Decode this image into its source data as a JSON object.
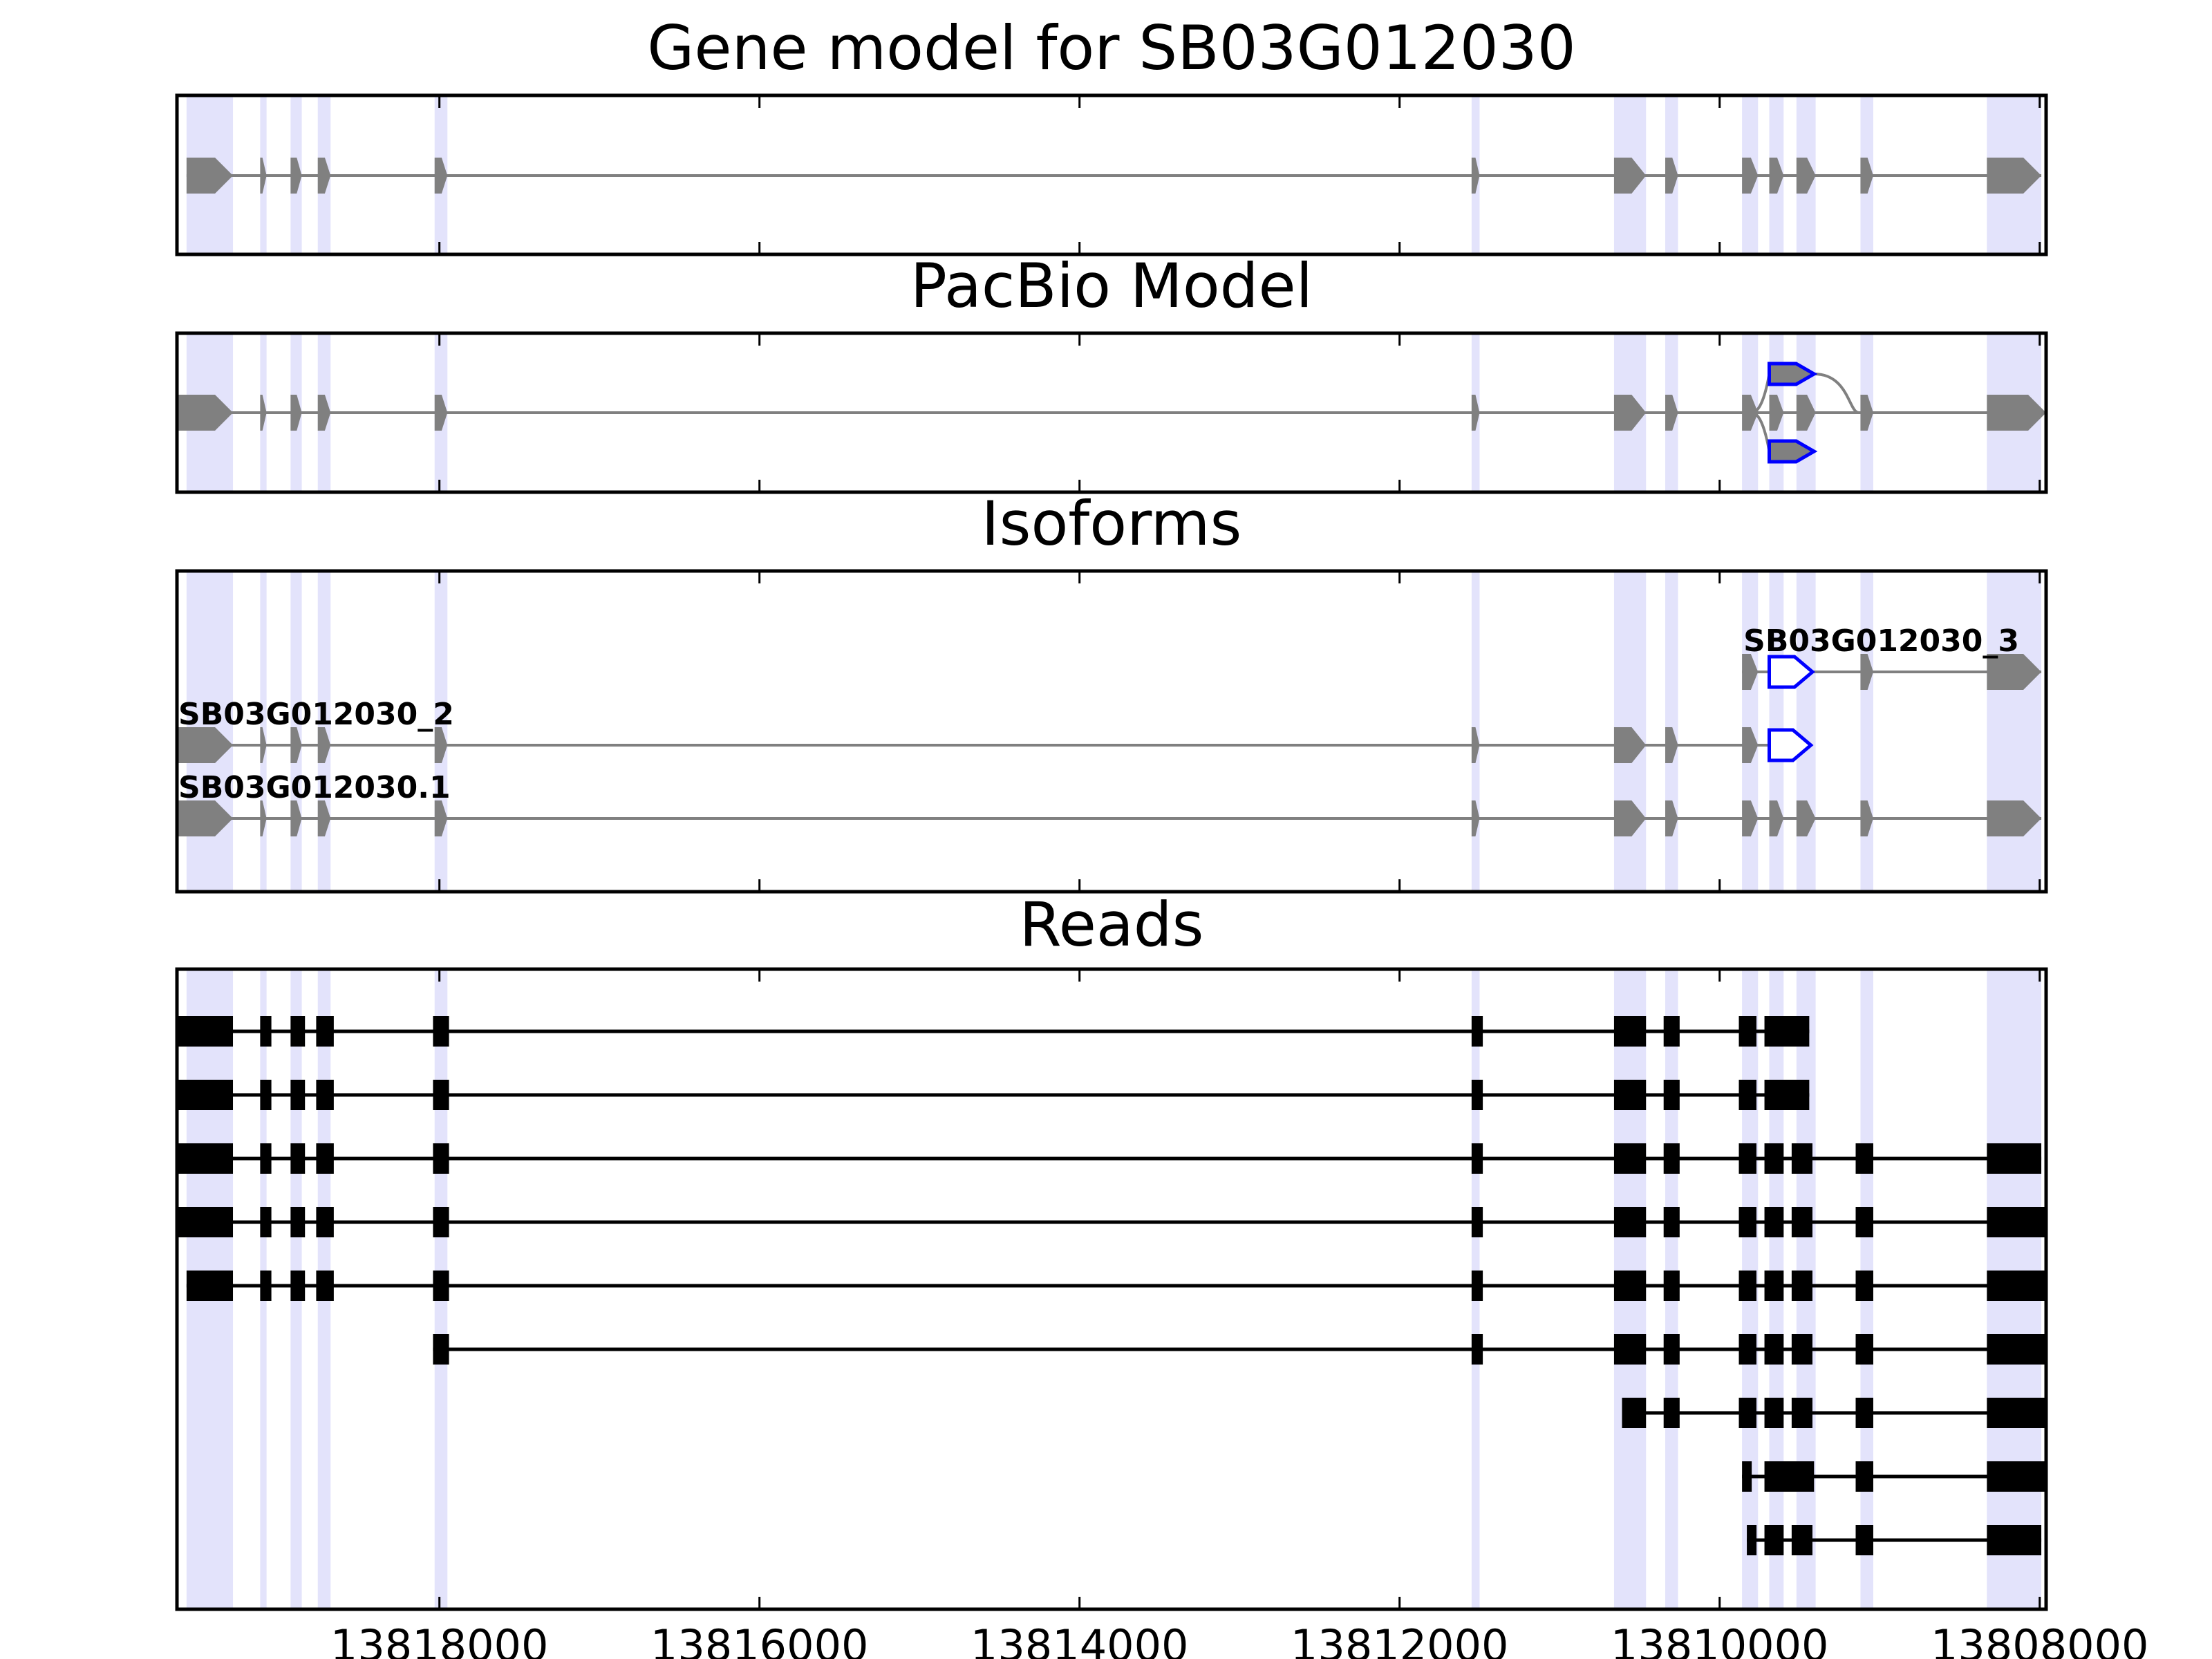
{
  "chart_data": {
    "type": "gene_model",
    "x_reversed": true,
    "xlim": [
      13819640,
      13807960
    ],
    "x_ticks": [
      13818000,
      13816000,
      13814000,
      13812000,
      13810000,
      13808000
    ],
    "x_tick_labels": [
      "13818000",
      "13816000",
      "13814000",
      "13812000",
      "13810000",
      "13808000"
    ],
    "shaded_exons": [
      [
        13819580,
        13819290
      ],
      [
        13819120,
        13819080
      ],
      [
        13818930,
        13818860
      ],
      [
        13818760,
        13818680
      ],
      [
        13818030,
        13817950
      ],
      [
        13811550,
        13811500
      ],
      [
        13810660,
        13810460
      ],
      [
        13810340,
        13810260
      ],
      [
        13809860,
        13809760
      ],
      [
        13809690,
        13809600
      ],
      [
        13809520,
        13809400
      ],
      [
        13809120,
        13809040
      ],
      [
        13808330,
        13807990
      ]
    ],
    "panels": [
      {
        "title": "Gene model for SB03G012030",
        "tracks": [
          {
            "label": "",
            "exons": [
              {
                "start": 13819580,
                "end": 13819290,
                "color": "gray"
              },
              {
                "start": 13819120,
                "end": 13819080,
                "color": "gray"
              },
              {
                "start": 13818930,
                "end": 13818860,
                "color": "gray"
              },
              {
                "start": 13818760,
                "end": 13818680,
                "color": "gray"
              },
              {
                "start": 13818030,
                "end": 13817950,
                "color": "gray"
              },
              {
                "start": 13811550,
                "end": 13811500,
                "color": "gray"
              },
              {
                "start": 13810660,
                "end": 13810460,
                "color": "gray"
              },
              {
                "start": 13810340,
                "end": 13810260,
                "color": "gray"
              },
              {
                "start": 13809860,
                "end": 13809760,
                "color": "gray"
              },
              {
                "start": 13809690,
                "end": 13809600,
                "color": "gray"
              },
              {
                "start": 13809520,
                "end": 13809400,
                "color": "gray"
              },
              {
                "start": 13809120,
                "end": 13809040,
                "color": "gray"
              },
              {
                "start": 13808330,
                "end": 13807990,
                "color": "gray"
              }
            ]
          }
        ]
      },
      {
        "title": "PacBio Model",
        "tracks": [
          {
            "label": "",
            "exons": [
              {
                "start": 13819640,
                "end": 13819290,
                "color": "gray"
              },
              {
                "start": 13819120,
                "end": 13819080,
                "color": "gray"
              },
              {
                "start": 13818930,
                "end": 13818860,
                "color": "gray"
              },
              {
                "start": 13818760,
                "end": 13818680,
                "color": "gray"
              },
              {
                "start": 13818030,
                "end": 13817950,
                "color": "gray"
              },
              {
                "start": 13811550,
                "end": 13811500,
                "color": "gray"
              },
              {
                "start": 13810660,
                "end": 13810460,
                "color": "gray"
              },
              {
                "start": 13810340,
                "end": 13810260,
                "color": "gray"
              },
              {
                "start": 13809860,
                "end": 13809760,
                "color": "gray"
              },
              {
                "start": 13809690,
                "end": 13809600,
                "color": "gray"
              },
              {
                "start": 13809520,
                "end": 13809400,
                "color": "gray"
              },
              {
                "start": 13809120,
                "end": 13809040,
                "color": "gray"
              },
              {
                "start": 13808330,
                "end": 13807960,
                "color": "gray"
              }
            ]
          }
        ],
        "alt_exons": [
          {
            "start": 13809690,
            "end": 13809410,
            "color": "blue",
            "branch": "up"
          },
          {
            "start": 13809690,
            "end": 13809410,
            "color": "blue",
            "branch": "down"
          }
        ]
      },
      {
        "title": "Isoforms",
        "tracks": [
          {
            "label": "SB03G012030_3",
            "exons": [
              {
                "start": 13809860,
                "end": 13809760,
                "color": "gray"
              },
              {
                "start": 13809690,
                "end": 13809420,
                "color": "blue"
              },
              {
                "start": 13809120,
                "end": 13809040,
                "color": "gray"
              },
              {
                "start": 13808330,
                "end": 13807990,
                "color": "gray"
              }
            ]
          },
          {
            "label": "SB03G012030_2",
            "exons": [
              {
                "start": 13819640,
                "end": 13819290,
                "color": "gray"
              },
              {
                "start": 13819120,
                "end": 13819080,
                "color": "gray"
              },
              {
                "start": 13818930,
                "end": 13818860,
                "color": "gray"
              },
              {
                "start": 13818760,
                "end": 13818680,
                "color": "gray"
              },
              {
                "start": 13818030,
                "end": 13817950,
                "color": "gray"
              },
              {
                "start": 13811550,
                "end": 13811500,
                "color": "gray"
              },
              {
                "start": 13810660,
                "end": 13810460,
                "color": "gray"
              },
              {
                "start": 13810340,
                "end": 13810260,
                "color": "gray"
              },
              {
                "start": 13809860,
                "end": 13809760,
                "color": "gray"
              },
              {
                "start": 13809690,
                "end": 13809430,
                "color": "blue"
              }
            ]
          },
          {
            "label": "SB03G012030.1",
            "exons": [
              {
                "start": 13819640,
                "end": 13819290,
                "color": "gray"
              },
              {
                "start": 13819120,
                "end": 13819080,
                "color": "gray"
              },
              {
                "start": 13818930,
                "end": 13818860,
                "color": "gray"
              },
              {
                "start": 13818760,
                "end": 13818680,
                "color": "gray"
              },
              {
                "start": 13818030,
                "end": 13817950,
                "color": "gray"
              },
              {
                "start": 13811550,
                "end": 13811500,
                "color": "gray"
              },
              {
                "start": 13810660,
                "end": 13810460,
                "color": "gray"
              },
              {
                "start": 13810340,
                "end": 13810260,
                "color": "gray"
              },
              {
                "start": 13809860,
                "end": 13809760,
                "color": "gray"
              },
              {
                "start": 13809690,
                "end": 13809600,
                "color": "gray"
              },
              {
                "start": 13809520,
                "end": 13809400,
                "color": "gray"
              },
              {
                "start": 13809120,
                "end": 13809040,
                "color": "gray"
              },
              {
                "start": 13808330,
                "end": 13807990,
                "color": "gray"
              }
            ]
          }
        ]
      },
      {
        "title": "Reads",
        "reads": [
          [
            [
              13819640,
              13819290
            ],
            [
              13819120,
              13819050
            ],
            [
              13818930,
              13818840
            ],
            [
              13818770,
              13818660
            ],
            [
              13818040,
              13817940
            ],
            [
              13811550,
              13811480
            ],
            [
              13810660,
              13810460
            ],
            [
              13810350,
              13810250
            ],
            [
              13809880,
              13809770
            ],
            [
              13809720,
              13809440
            ]
          ],
          [
            [
              13819640,
              13819290
            ],
            [
              13819120,
              13819050
            ],
            [
              13818930,
              13818840
            ],
            [
              13818770,
              13818660
            ],
            [
              13818040,
              13817940
            ],
            [
              13811550,
              13811480
            ],
            [
              13810660,
              13810460
            ],
            [
              13810350,
              13810250
            ],
            [
              13809880,
              13809770
            ],
            [
              13809720,
              13809440
            ]
          ],
          [
            [
              13819640,
              13819290
            ],
            [
              13819120,
              13819050
            ],
            [
              13818930,
              13818840
            ],
            [
              13818770,
              13818660
            ],
            [
              13818040,
              13817940
            ],
            [
              13811550,
              13811480
            ],
            [
              13810660,
              13810460
            ],
            [
              13810350,
              13810250
            ],
            [
              13809880,
              13809770
            ],
            [
              13809720,
              13809600
            ],
            [
              13809550,
              13809420
            ],
            [
              13809150,
              13809040
            ],
            [
              13808330,
              13807990
            ]
          ],
          [
            [
              13819640,
              13819290
            ],
            [
              13819120,
              13819050
            ],
            [
              13818930,
              13818840
            ],
            [
              13818770,
              13818660
            ],
            [
              13818040,
              13817940
            ],
            [
              13811550,
              13811480
            ],
            [
              13810660,
              13810460
            ],
            [
              13810350,
              13810250
            ],
            [
              13809880,
              13809770
            ],
            [
              13809720,
              13809600
            ],
            [
              13809550,
              13809420
            ],
            [
              13809150,
              13809040
            ],
            [
              13808330,
              13807960
            ]
          ],
          [
            [
              13819580,
              13819290
            ],
            [
              13819120,
              13819050
            ],
            [
              13818930,
              13818840
            ],
            [
              13818770,
              13818660
            ],
            [
              13818040,
              13817940
            ],
            [
              13811550,
              13811480
            ],
            [
              13810660,
              13810460
            ],
            [
              13810350,
              13810250
            ],
            [
              13809880,
              13809770
            ],
            [
              13809720,
              13809600
            ],
            [
              13809550,
              13809420
            ],
            [
              13809150,
              13809040
            ],
            [
              13808330,
              13807960
            ]
          ],
          [
            [
              13818040,
              13817940
            ],
            [
              13811550,
              13811480
            ],
            [
              13810660,
              13810460
            ],
            [
              13810350,
              13810250
            ],
            [
              13809880,
              13809770
            ],
            [
              13809720,
              13809600
            ],
            [
              13809550,
              13809420
            ],
            [
              13809150,
              13809040
            ],
            [
              13808330,
              13807960
            ]
          ],
          [
            [
              13810610,
              13810460
            ],
            [
              13810350,
              13810250
            ],
            [
              13809880,
              13809770
            ],
            [
              13809720,
              13809600
            ],
            [
              13809550,
              13809420
            ],
            [
              13809150,
              13809040
            ],
            [
              13808330,
              13807960
            ]
          ],
          [
            [
              13809860,
              13809800
            ],
            [
              13809720,
              13809410
            ],
            [
              13809150,
              13809040
            ],
            [
              13808330,
              13807970
            ]
          ],
          [
            [
              13809830,
              13809800
            ],
            [
              13809720,
              13809600
            ],
            [
              13809550,
              13809420
            ],
            [
              13809150,
              13809040
            ],
            [
              13808330,
              13807990
            ]
          ]
        ]
      }
    ]
  }
}
